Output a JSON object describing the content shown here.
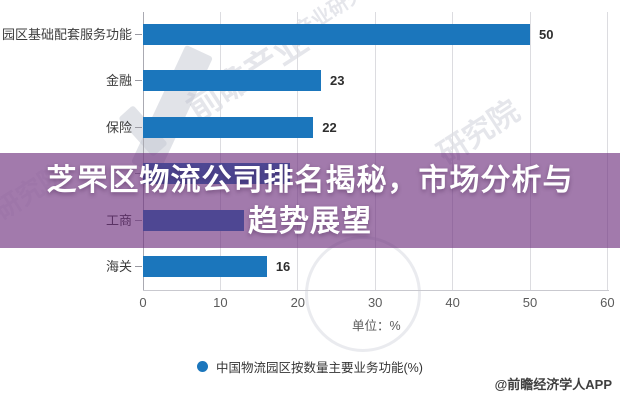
{
  "banner": {
    "line1": "芝罘区物流公司排名揭秘，市场分析与",
    "line2": "趋势展望",
    "bg_color": "#6c2c7c",
    "bg_opacity": 0.63
  },
  "chart_data": {
    "type": "bar",
    "orientation": "horizontal",
    "categories": [
      "园区基础配套服务功能",
      "金融",
      "保险",
      "",
      "工商",
      "海关"
    ],
    "values": [
      50,
      23,
      22,
      19,
      13,
      16
    ],
    "value_labels": [
      "50",
      "23",
      "22",
      "",
      "",
      "16"
    ],
    "xticks": [
      0,
      10,
      20,
      30,
      40,
      50,
      60
    ],
    "xlim": [
      0,
      60
    ],
    "xlabel": "单位：%",
    "grid": true,
    "bar_color": "#1b76bc",
    "legend": [
      {
        "label": "中国物流园区按数量主要业务功能(%)",
        "color": "#1b76bc"
      }
    ]
  },
  "footer": {
    "credit": "@前瞻经济学人APP"
  },
  "watermarks": {
    "texts": [
      "前瞻产业",
      "研究院",
      "产业研究院",
      "研究院"
    ]
  }
}
